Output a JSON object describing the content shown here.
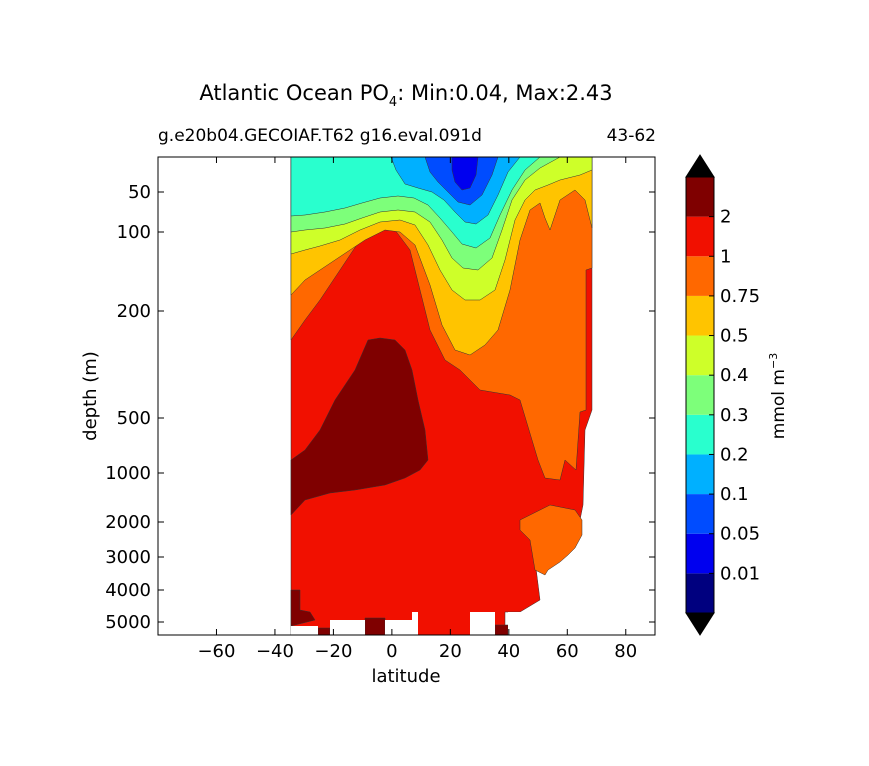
{
  "chart_data": {
    "type": "heatmap",
    "title_main": "Atlantic Ocean PO",
    "title_sub": "4",
    "title_rest": ": Min:0.04, Max:2.43",
    "subtitle_left": "g.e20b04.GECOIAF.T62 g16.eval.091d",
    "subtitle_right": "43-62",
    "xlabel": "latitude",
    "ylabel": "depth (m)",
    "xlim": [
      -80,
      90
    ],
    "x_ticks": [
      "−60",
      "−40",
      "−20",
      "0",
      "20",
      "40",
      "60",
      "80"
    ],
    "x_tick_values": [
      -60,
      -40,
      -20,
      0,
      20,
      40,
      60,
      80
    ],
    "y_scale": "log-like (stretched)",
    "y_ticks": [
      "50",
      "100",
      "200",
      "500",
      "1000",
      "2000",
      "3000",
      "4000",
      "5000"
    ],
    "y_tick_values": [
      50,
      100,
      200,
      500,
      1000,
      2000,
      3000,
      4000,
      5000
    ],
    "colorbar": {
      "label": "mmol m",
      "label_sup": "−3",
      "levels": [
        "0.01",
        "0.05",
        "0.1",
        "0.2",
        "0.3",
        "0.4",
        "0.5",
        "0.75",
        "1",
        "2"
      ],
      "colors": [
        "#00007f",
        "#0000ef",
        "#004cff",
        "#00b0ff",
        "#29ffce",
        "#7dff7a",
        "#ceff29",
        "#ffc400",
        "#ff6800",
        "#f11000",
        "#7f0000"
      ],
      "extend": "both",
      "under_color": "#000000",
      "over_color": "#000000"
    },
    "data_lat_range": [
      -34,
      68
    ],
    "fill_colors": {
      "c_02": "#29ffce",
      "c_01": "#00b0ff",
      "c_005": "#004cff",
      "c_001": "#0000ef",
      "c_03": "#7dff7a",
      "c_04": "#ceff29",
      "c_05": "#ffc400",
      "c_075": "#ff6800",
      "c_1": "#f11000",
      "c_2": "#7f0000"
    }
  }
}
